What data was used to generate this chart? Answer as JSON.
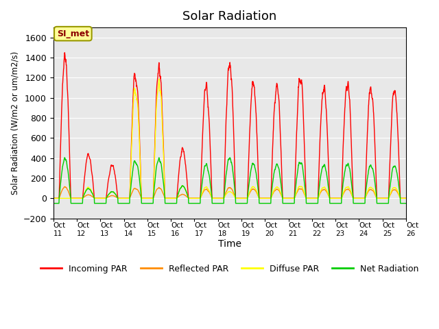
{
  "title": "Solar Radiation",
  "xlabel": "Time",
  "ylabel": "Solar Radiation (W/m2 or um/m2/s)",
  "ylim": [
    -200,
    1700
  ],
  "yticks": [
    -200,
    0,
    200,
    400,
    600,
    800,
    1000,
    1200,
    1400,
    1600
  ],
  "annotation": "SI_met",
  "x_tick_labels": [
    "Oct 11",
    "Oct 12",
    "Oct 13",
    "Oct 14",
    "Oct 15",
    "Oct 16",
    "Oct 17",
    "Oct 18",
    "Oct 19",
    "Oct 20",
    "Oct 21",
    "Oct 22",
    "Oct 23",
    "Oct 24",
    "Oct 25",
    "Oct 26"
  ],
  "series_colors": {
    "incoming": "#FF0000",
    "reflected": "#FF8C00",
    "diffuse": "#FFFF00",
    "net": "#00CC00"
  },
  "legend_labels": [
    "Incoming PAR",
    "Reflected PAR",
    "Diffuse PAR",
    "Net Radiation"
  ],
  "background_color": "#E8E8E8",
  "figure_background": "#FFFFFF",
  "n_days": 15,
  "pts_per_day": 144,
  "line_width": 1.0,
  "incoming_peaks": [
    1580,
    500,
    380,
    1400,
    1480,
    550,
    1250,
    1540,
    1320,
    1280,
    1400,
    1270,
    1300,
    1250,
    1240
  ],
  "diffuse_factors": [
    0.0,
    0.25,
    0.2,
    0.88,
    0.88,
    0.25,
    0.1,
    0.05,
    0.1,
    0.1,
    0.1,
    0.1,
    0.1,
    0.1,
    0.1
  ],
  "net_factors": [
    0.28,
    0.22,
    0.2,
    0.3,
    0.3,
    0.25,
    0.3,
    0.3,
    0.3,
    0.3,
    0.3,
    0.3,
    0.3,
    0.3,
    0.3
  ]
}
